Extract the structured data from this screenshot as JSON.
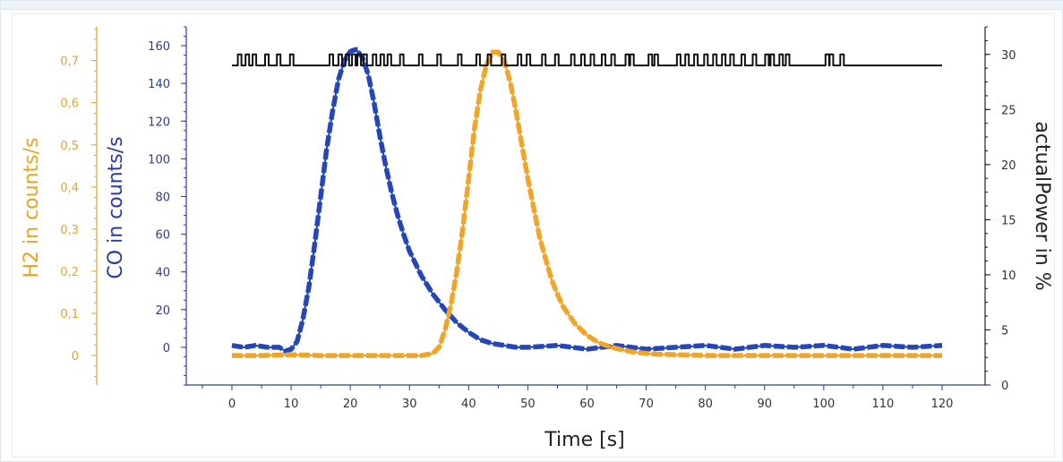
{
  "chart_data": {
    "type": "line",
    "xlabel": "Time [s]",
    "xlim": [
      0,
      120
    ],
    "x_ticks": [
      "0",
      "10",
      "20",
      "30",
      "40",
      "50",
      "60",
      "70",
      "80",
      "90",
      "100",
      "110",
      "120"
    ],
    "axes": {
      "h2": {
        "label": "H2 in counts/s",
        "ylim": [
          -0.07,
          0.78
        ],
        "ticks": [
          "0",
          "0,1",
          "0,2",
          "0,3",
          "0,4",
          "0,5",
          "0,6",
          "0,7"
        ],
        "tick_values": [
          0,
          0.1,
          0.2,
          0.3,
          0.4,
          0.5,
          0.6,
          0.7
        ],
        "color": "#e8a424"
      },
      "co": {
        "label": "CO in counts/s",
        "ylim": [
          -20,
          170
        ],
        "ticks": [
          "0",
          "20",
          "40",
          "60",
          "80",
          "100",
          "120",
          "140",
          "160"
        ],
        "tick_values": [
          0,
          20,
          40,
          60,
          80,
          100,
          120,
          140,
          160
        ],
        "color": "#2a3c9e"
      },
      "power": {
        "label": "actualPower in %",
        "ylim": [
          0,
          32.5
        ],
        "ticks": [
          "0",
          "5",
          "10",
          "15",
          "20",
          "25",
          "30"
        ],
        "tick_values": [
          0,
          5,
          10,
          15,
          20,
          25,
          30
        ],
        "color": "#111111"
      }
    },
    "series": [
      {
        "axis": "co",
        "color": "#2446b8",
        "x": [
          0,
          2,
          4,
          6,
          8,
          9,
          10,
          11,
          12,
          13,
          14,
          15,
          16,
          17,
          18,
          19,
          20,
          21,
          22,
          23,
          24,
          25,
          26,
          27,
          28,
          29,
          30,
          32,
          34,
          36,
          38,
          40,
          42,
          44,
          46,
          48,
          50,
          55,
          60,
          65,
          70,
          75,
          80,
          85,
          90,
          95,
          100,
          105,
          110,
          115,
          120
        ],
        "y": [
          1,
          0,
          1,
          0,
          0,
          -2,
          -1,
          3,
          15,
          32,
          55,
          80,
          105,
          125,
          142,
          152,
          157,
          158,
          154,
          145,
          130,
          112,
          96,
          82,
          70,
          60,
          51,
          38,
          28,
          20,
          13,
          8,
          4,
          2,
          1,
          0,
          0,
          1,
          -1,
          1,
          -1,
          0,
          1,
          -1,
          1,
          0,
          1,
          -1,
          1,
          0,
          1
        ]
      },
      {
        "axis": "h2",
        "color": "#f0a428",
        "x": [
          0,
          5,
          10,
          15,
          20,
          25,
          30,
          32,
          34,
          35,
          36,
          37,
          38,
          39,
          40,
          41,
          42,
          43,
          44,
          45,
          46,
          47,
          48,
          49,
          50,
          51,
          52,
          53,
          54,
          55,
          56,
          58,
          60,
          62,
          64,
          66,
          68,
          70,
          72,
          75,
          80,
          85,
          90,
          95,
          100,
          105,
          110,
          115,
          120
        ],
        "y": [
          0,
          0,
          0.002,
          0,
          0,
          0,
          0,
          0,
          0.005,
          0.02,
          0.06,
          0.12,
          0.2,
          0.3,
          0.42,
          0.54,
          0.63,
          0.69,
          0.72,
          0.72,
          0.7,
          0.65,
          0.58,
          0.5,
          0.42,
          0.35,
          0.28,
          0.23,
          0.18,
          0.145,
          0.115,
          0.075,
          0.048,
          0.03,
          0.02,
          0.013,
          0.008,
          0.005,
          0.003,
          0.002,
          0,
          0,
          0,
          0,
          0,
          0,
          0,
          0,
          0
        ]
      },
      {
        "axis": "power",
        "color": "#111111",
        "step": true,
        "baseline": 29,
        "pulse_high": 30,
        "pulse_width": 0.6,
        "x": [
          0,
          120
        ],
        "y": [
          29,
          29
        ],
        "pulses": [
          1,
          2.3,
          3.5,
          5.6,
          7.6,
          9.8,
          16.5,
          18,
          19.2,
          20.3,
          21.2,
          22.2,
          23.8,
          25.1,
          26.3,
          28.4,
          31.6,
          34.7,
          38.2,
          41.3,
          43.2,
          45.6,
          48.3,
          49.8,
          52.4,
          54.6,
          57.3,
          59,
          60.6,
          62.5,
          64.1,
          66.5,
          67.3,
          70.4,
          71.4,
          75.2,
          76.6,
          78.1,
          79.8,
          81.3,
          82.8,
          84.2,
          86.1,
          88,
          90.1,
          91,
          92.5,
          93.6,
          100.3,
          101,
          102.8
        ]
      }
    ],
    "grid": false,
    "legend": "none"
  }
}
